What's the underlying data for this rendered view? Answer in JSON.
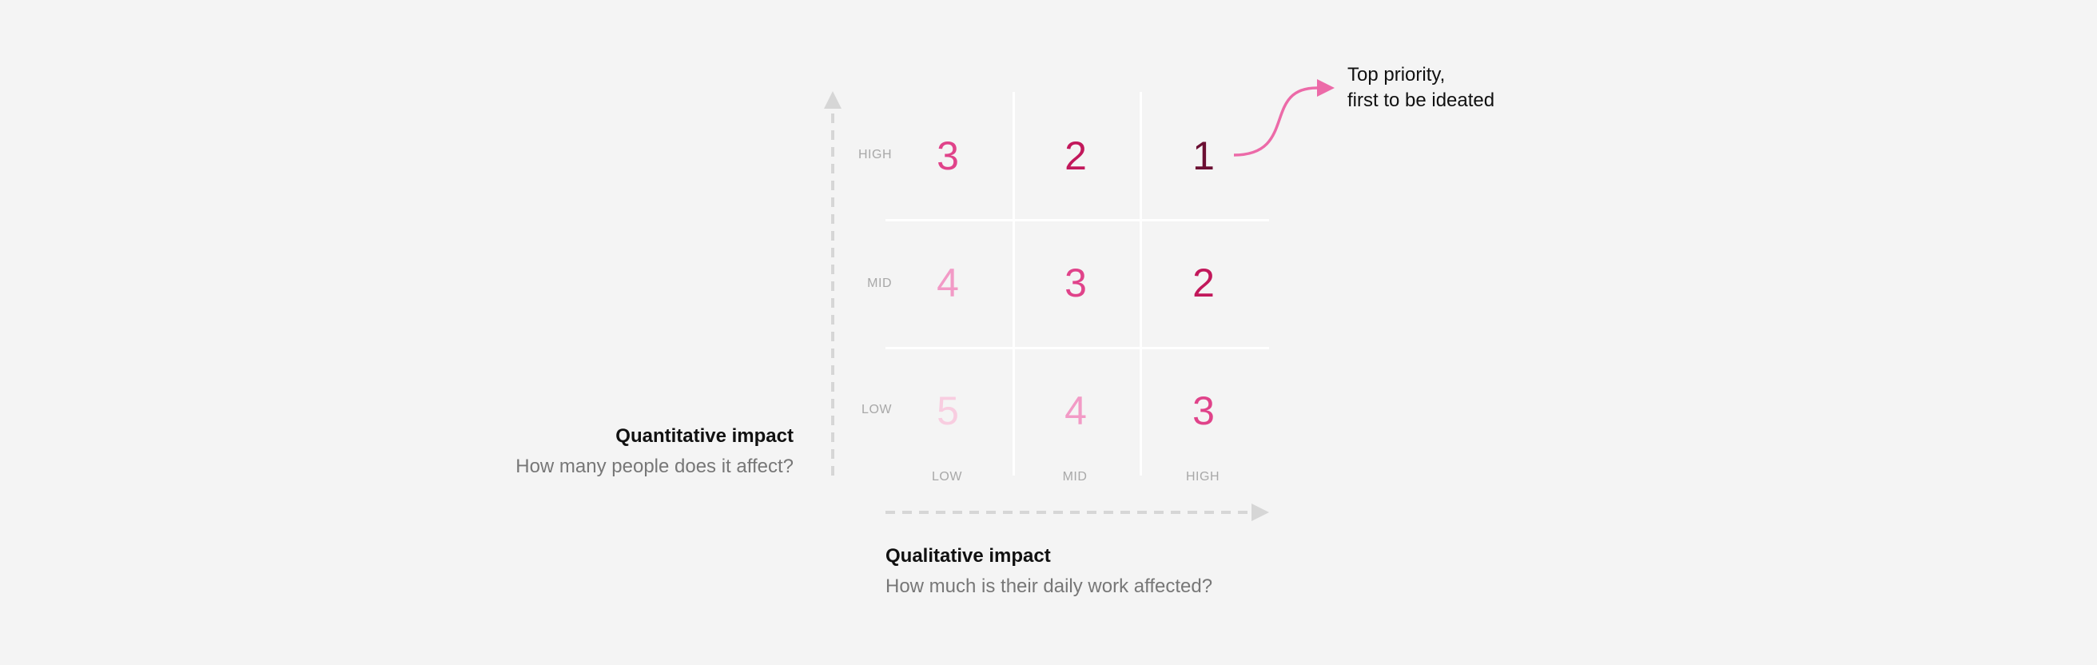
{
  "matrix": {
    "row_labels": [
      "HIGH",
      "MID",
      "LOW"
    ],
    "col_labels": [
      "LOW",
      "MID",
      "HIGH"
    ],
    "cells": [
      [
        {
          "value": "3",
          "color": "#e0438a"
        },
        {
          "value": "2",
          "color": "#c2185b"
        },
        {
          "value": "1",
          "color": "#6b0f33"
        }
      ],
      [
        {
          "value": "4",
          "color": "#f29ac6"
        },
        {
          "value": "3",
          "color": "#e0438a"
        },
        {
          "value": "2",
          "color": "#c2185b"
        }
      ],
      [
        {
          "value": "5",
          "color": "#f8cde0"
        },
        {
          "value": "4",
          "color": "#f29ac6"
        },
        {
          "value": "3",
          "color": "#e0438a"
        }
      ]
    ]
  },
  "y_axis": {
    "title": "Quantitative impact",
    "subtitle": "How many people does it affect?"
  },
  "x_axis": {
    "title": "Qualitative impact",
    "subtitle": "How much is their daily work affected?"
  },
  "annotation": {
    "line1": "Top priority,",
    "line2": "first to be ideated",
    "arrow_color": "#ec6aa8"
  },
  "colors": {
    "axis_arrow": "#d6d6d6",
    "grid_line": "#ffffff"
  }
}
